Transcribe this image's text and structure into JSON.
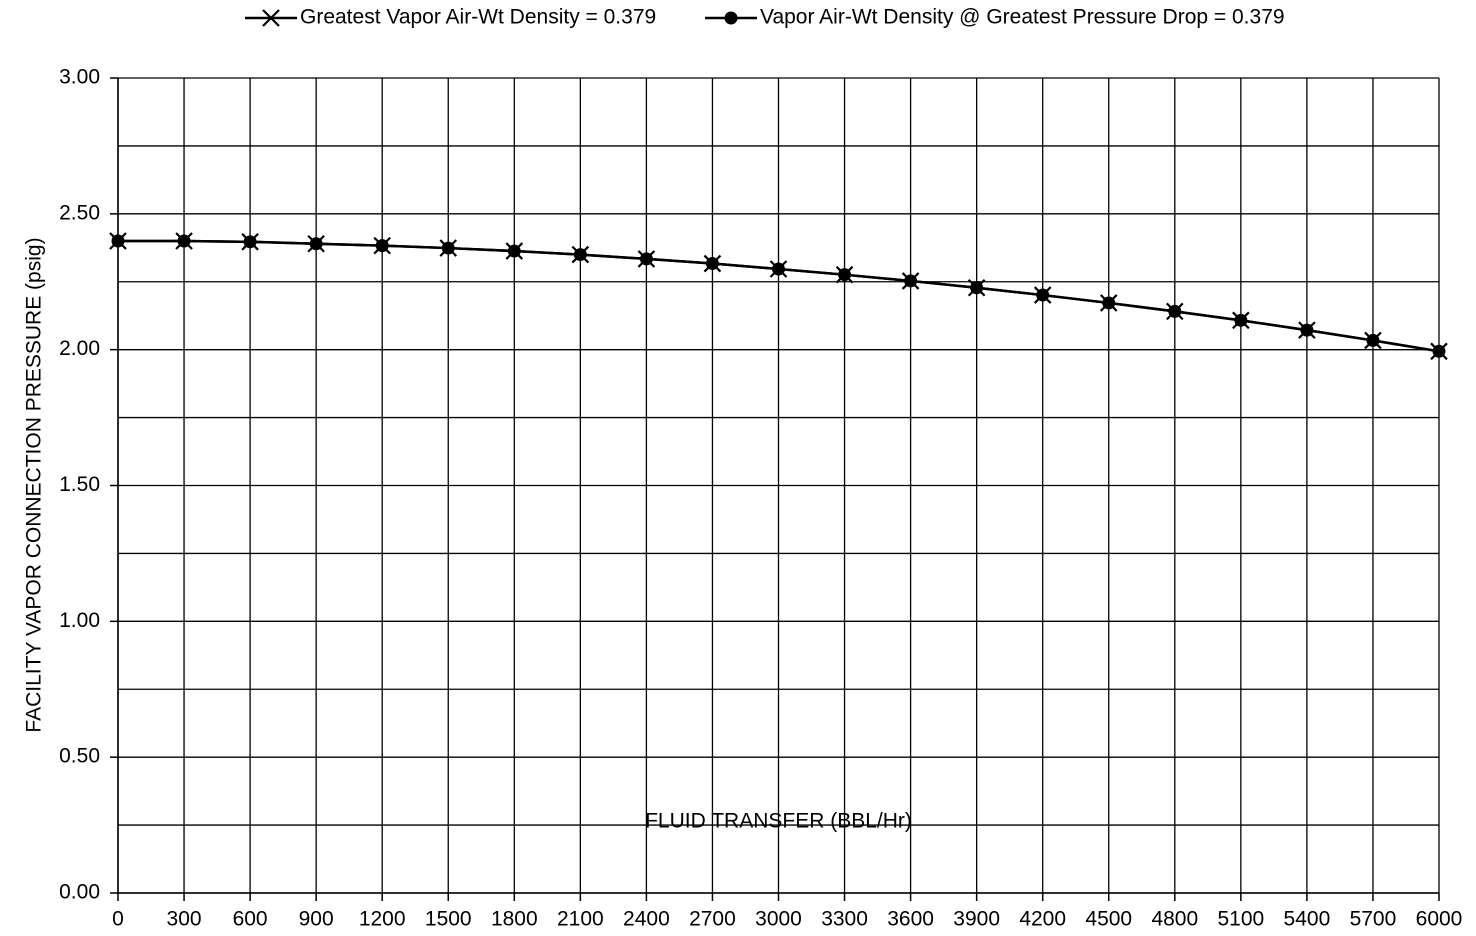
{
  "chart_data": {
    "type": "line",
    "x_label": "FLUID TRANSFER (BBL/Hr)",
    "y_label": "FACILITY VAPOR CONNECTION PRESSURE (psig)",
    "x": [
      0,
      300,
      600,
      900,
      1200,
      1500,
      1800,
      2100,
      2400,
      2700,
      3000,
      3300,
      3600,
      3900,
      4200,
      4500,
      4800,
      5100,
      5400,
      5700,
      6000
    ],
    "series": [
      {
        "name": "Greatest Vapor Air-Wt Density = 0.379",
        "color": "#000000",
        "marker": "x",
        "values": [
          2.4,
          2.4,
          2.397,
          2.39,
          2.383,
          2.374,
          2.363,
          2.35,
          2.334,
          2.317,
          2.297,
          2.276,
          2.253,
          2.228,
          2.201,
          2.172,
          2.141,
          2.108,
          2.072,
          2.034,
          1.994
        ]
      },
      {
        "name": "Vapor Air-Wt Density @ Greatest Pressure Drop = 0.379",
        "color": "#000000",
        "marker": "circle",
        "values": [
          2.4,
          2.4,
          2.397,
          2.39,
          2.383,
          2.374,
          2.363,
          2.35,
          2.334,
          2.317,
          2.297,
          2.276,
          2.253,
          2.228,
          2.201,
          2.172,
          2.141,
          2.108,
          2.072,
          2.034,
          1.994
        ]
      }
    ],
    "xlim": [
      0,
      6000
    ],
    "xticks": [
      0,
      300,
      600,
      900,
      1200,
      1500,
      1800,
      2100,
      2400,
      2700,
      3000,
      3300,
      3600,
      3900,
      4200,
      4500,
      4800,
      5100,
      5400,
      5700,
      6000
    ],
    "ylim": [
      0,
      3
    ],
    "yticks": [
      {
        "value": 0,
        "label": "0.00"
      },
      {
        "value": 0.5,
        "label": "0.50"
      },
      {
        "value": 1,
        "label": "1.00"
      },
      {
        "value": 1.5,
        "label": "1.50"
      },
      {
        "value": 2,
        "label": "2.00"
      },
      {
        "value": 2.5,
        "label": "2.50"
      },
      {
        "value": 3,
        "label": "3.00"
      }
    ],
    "minor_ygrid": [
      0.25,
      0.75,
      1.25,
      1.75,
      2.25,
      2.75
    ],
    "grid": true,
    "legend": "top"
  }
}
